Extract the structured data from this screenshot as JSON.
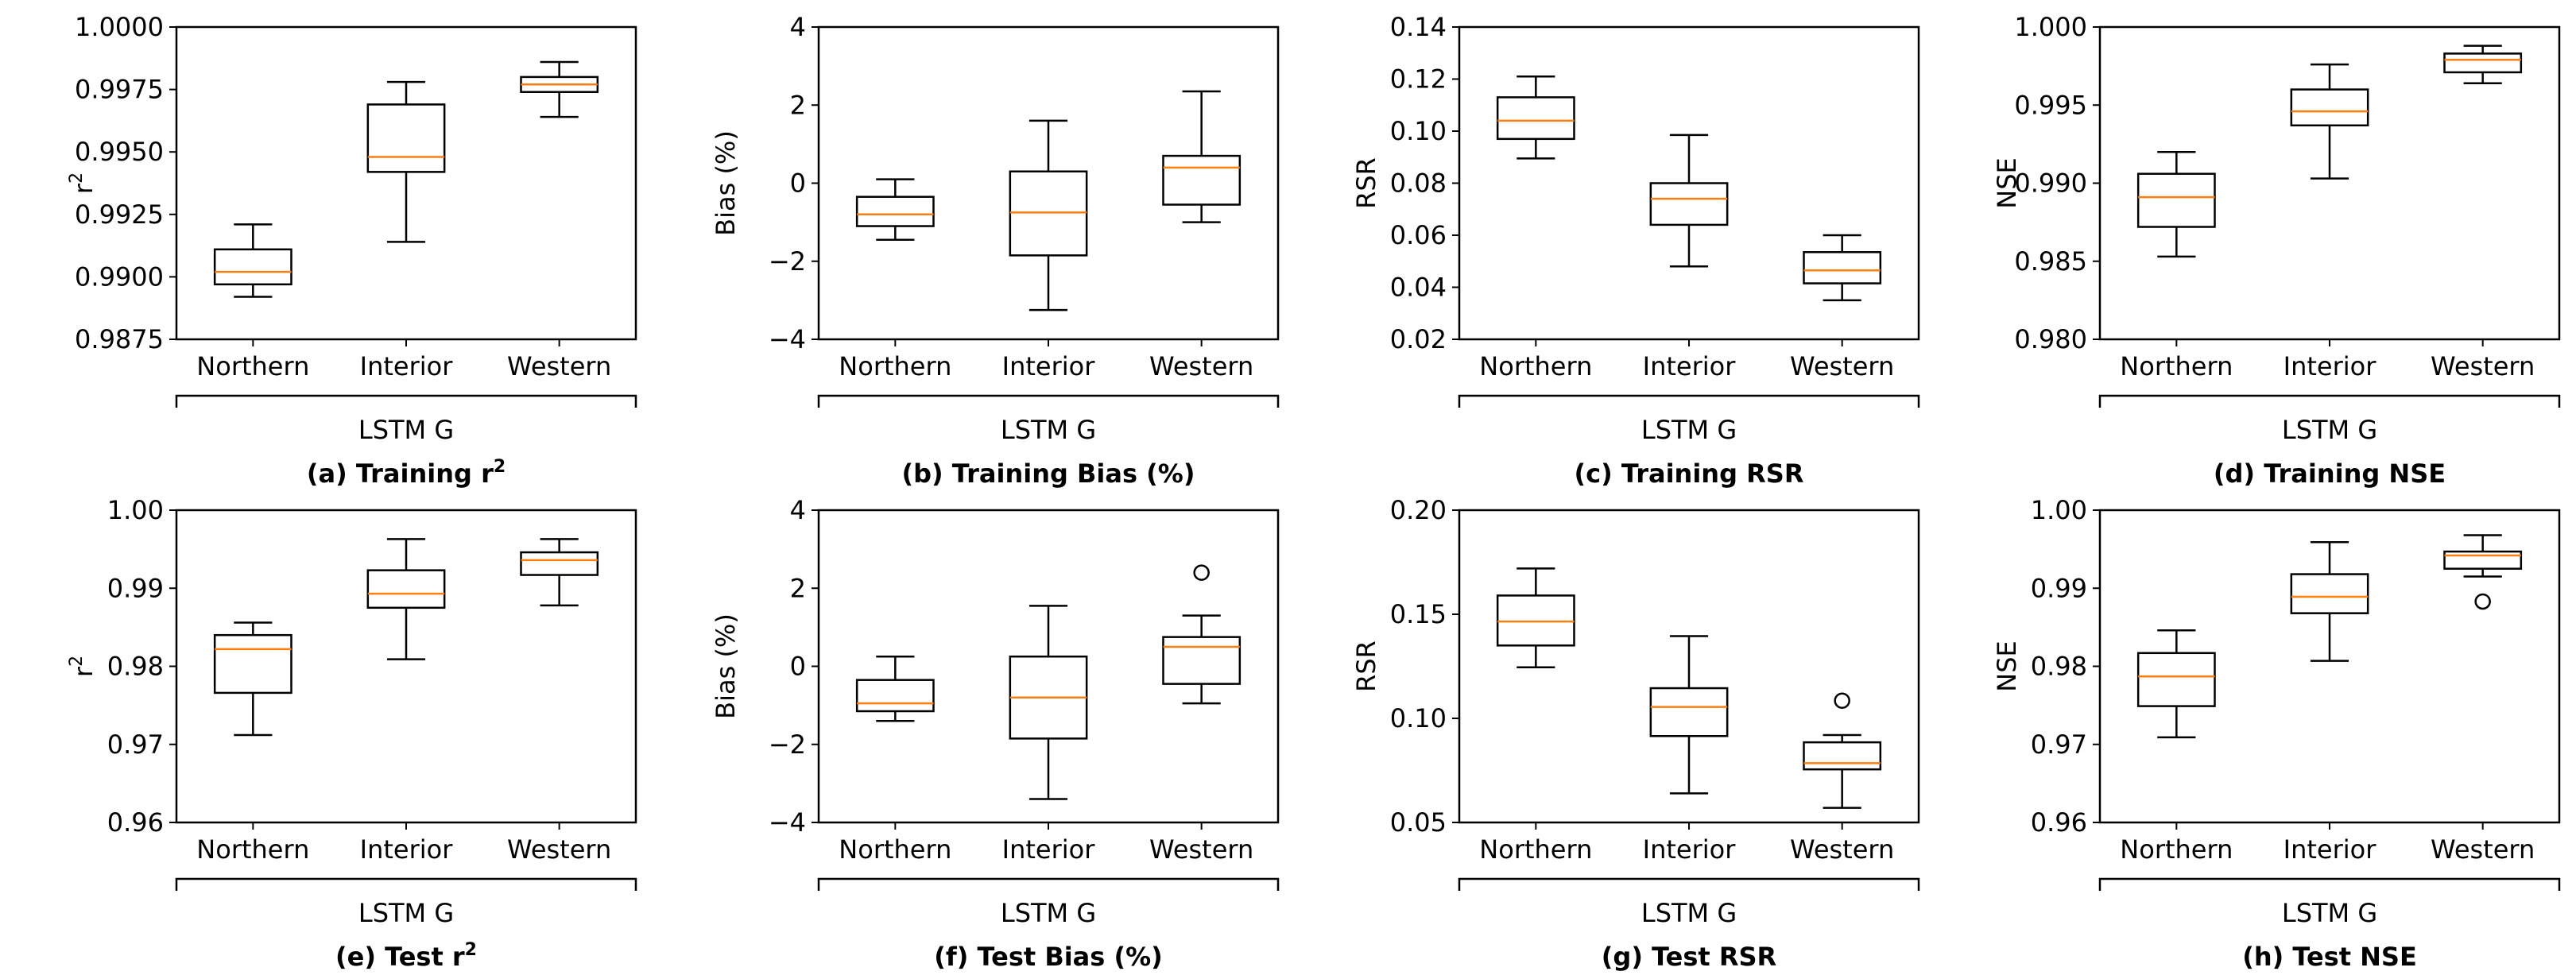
{
  "chart_data": [
    {
      "type": "boxplot",
      "panel": "a",
      "caption": "(a) Training r",
      "caption_sup": "2",
      "ylabel": "r",
      "ylabel_sup": "2",
      "ylim": [
        0.9875,
        1.0
      ],
      "yticks": [
        0.9875,
        0.99,
        0.9925,
        0.995,
        0.9975,
        1.0
      ],
      "ytick_labels": [
        "0.9875",
        "0.9900",
        "0.9925",
        "0.9950",
        "0.9975",
        "1.0000"
      ],
      "categories": [
        "Northern",
        "Interior",
        "Western"
      ],
      "group_label": "LSTM G",
      "boxes": [
        {
          "whislo": 0.9892,
          "q1": 0.9897,
          "med": 0.9902,
          "q3": 0.9911,
          "whishi": 0.9921,
          "fliers": []
        },
        {
          "whislo": 0.9914,
          "q1": 0.9942,
          "med": 0.9948,
          "q3": 0.9969,
          "whishi": 0.9978,
          "fliers": []
        },
        {
          "whislo": 0.9964,
          "q1": 0.9974,
          "med": 0.9977,
          "q3": 0.998,
          "whishi": 0.9986,
          "fliers": []
        }
      ]
    },
    {
      "type": "boxplot",
      "panel": "b",
      "caption": "(b) Training Bias (%)",
      "caption_sup": "",
      "ylabel": "Bias (%)",
      "ylabel_sup": "",
      "ylim": [
        -4,
        4
      ],
      "yticks": [
        -4,
        -2,
        0,
        2,
        4
      ],
      "ytick_labels": [
        "−4",
        "−2",
        "0",
        "2",
        "4"
      ],
      "categories": [
        "Northern",
        "Interior",
        "Western"
      ],
      "group_label": "LSTM G",
      "boxes": [
        {
          "whislo": -1.45,
          "q1": -1.1,
          "med": -0.8,
          "q3": -0.35,
          "whishi": 0.1,
          "fliers": []
        },
        {
          "whislo": -3.25,
          "q1": -1.85,
          "med": -0.75,
          "q3": 0.3,
          "whishi": 1.6,
          "fliers": []
        },
        {
          "whislo": -1.0,
          "q1": -0.55,
          "med": 0.4,
          "q3": 0.7,
          "whishi": 2.35,
          "fliers": []
        }
      ]
    },
    {
      "type": "boxplot",
      "panel": "c",
      "caption": "(c) Training RSR",
      "caption_sup": "",
      "ylabel": "RSR",
      "ylabel_sup": "",
      "ylim": [
        0.02,
        0.14
      ],
      "yticks": [
        0.02,
        0.04,
        0.06,
        0.08,
        0.1,
        0.12,
        0.14
      ],
      "ytick_labels": [
        "0.02",
        "0.04",
        "0.06",
        "0.08",
        "0.10",
        "0.12",
        "0.14"
      ],
      "categories": [
        "Northern",
        "Interior",
        "Western"
      ],
      "group_label": "LSTM G",
      "boxes": [
        {
          "whislo": 0.0895,
          "q1": 0.097,
          "med": 0.104,
          "q3": 0.113,
          "whishi": 0.121,
          "fliers": []
        },
        {
          "whislo": 0.048,
          "q1": 0.064,
          "med": 0.074,
          "q3": 0.08,
          "whishi": 0.0985,
          "fliers": []
        },
        {
          "whislo": 0.035,
          "q1": 0.0415,
          "med": 0.0465,
          "q3": 0.0535,
          "whishi": 0.06,
          "fliers": []
        }
      ]
    },
    {
      "type": "boxplot",
      "panel": "d",
      "caption": "(d) Training NSE",
      "caption_sup": "",
      "ylabel": "NSE",
      "ylabel_sup": "",
      "ylim": [
        0.98,
        1.0
      ],
      "yticks": [
        0.98,
        0.985,
        0.99,
        0.995,
        1.0
      ],
      "ytick_labels": [
        "0.980",
        "0.985",
        "0.990",
        "0.995",
        "1.000"
      ],
      "categories": [
        "Northern",
        "Interior",
        "Western"
      ],
      "group_label": "LSTM G",
      "boxes": [
        {
          "whislo": 0.9853,
          "q1": 0.9872,
          "med": 0.9891,
          "q3": 0.9906,
          "whishi": 0.992,
          "fliers": []
        },
        {
          "whislo": 0.9903,
          "q1": 0.9937,
          "med": 0.9946,
          "q3": 0.996,
          "whishi": 0.9976,
          "fliers": []
        },
        {
          "whislo": 0.9964,
          "q1": 0.9971,
          "med": 0.9979,
          "q3": 0.9983,
          "whishi": 0.9988,
          "fliers": []
        }
      ]
    },
    {
      "type": "boxplot",
      "panel": "e",
      "caption": "(e) Test r",
      "caption_sup": "2",
      "ylabel": "r",
      "ylabel_sup": "2",
      "ylim": [
        0.96,
        1.0
      ],
      "yticks": [
        0.96,
        0.97,
        0.98,
        0.99,
        1.0
      ],
      "ytick_labels": [
        "0.96",
        "0.97",
        "0.98",
        "0.99",
        "1.00"
      ],
      "categories": [
        "Northern",
        "Interior",
        "Western"
      ],
      "group_label": "LSTM G",
      "boxes": [
        {
          "whislo": 0.9712,
          "q1": 0.9766,
          "med": 0.9822,
          "q3": 0.984,
          "whishi": 0.9856,
          "fliers": []
        },
        {
          "whislo": 0.9809,
          "q1": 0.9875,
          "med": 0.9893,
          "q3": 0.9923,
          "whishi": 0.9963,
          "fliers": []
        },
        {
          "whislo": 0.9878,
          "q1": 0.9917,
          "med": 0.9936,
          "q3": 0.9946,
          "whishi": 0.9963,
          "fliers": []
        }
      ]
    },
    {
      "type": "boxplot",
      "panel": "f",
      "caption": "(f) Test Bias (%)",
      "caption_sup": "",
      "ylabel": "Bias (%)",
      "ylabel_sup": "",
      "ylim": [
        -4,
        4
      ],
      "yticks": [
        -4,
        -2,
        0,
        2,
        4
      ],
      "ytick_labels": [
        "−4",
        "−2",
        "0",
        "2",
        "4"
      ],
      "categories": [
        "Northern",
        "Interior",
        "Western"
      ],
      "group_label": "LSTM G",
      "boxes": [
        {
          "whislo": -1.4,
          "q1": -1.15,
          "med": -0.95,
          "q3": -0.35,
          "whishi": 0.25,
          "fliers": []
        },
        {
          "whislo": -3.4,
          "q1": -1.85,
          "med": -0.8,
          "q3": 0.25,
          "whishi": 1.55,
          "fliers": []
        },
        {
          "whislo": -0.95,
          "q1": -0.45,
          "med": 0.5,
          "q3": 0.75,
          "whishi": 1.3,
          "fliers": [
            2.4
          ]
        }
      ]
    },
    {
      "type": "boxplot",
      "panel": "g",
      "caption": "(g) Test RSR",
      "caption_sup": "",
      "ylabel": "RSR",
      "ylabel_sup": "",
      "ylim": [
        0.05,
        0.2
      ],
      "yticks": [
        0.05,
        0.1,
        0.15,
        0.2
      ],
      "ytick_labels": [
        "0.05",
        "0.10",
        "0.15",
        "0.20"
      ],
      "categories": [
        "Northern",
        "Interior",
        "Western"
      ],
      "group_label": "LSTM G",
      "boxes": [
        {
          "whislo": 0.1245,
          "q1": 0.135,
          "med": 0.1465,
          "q3": 0.159,
          "whishi": 0.172,
          "fliers": []
        },
        {
          "whislo": 0.064,
          "q1": 0.0915,
          "med": 0.1055,
          "q3": 0.1145,
          "whishi": 0.1395,
          "fliers": []
        },
        {
          "whislo": 0.057,
          "q1": 0.0755,
          "med": 0.0785,
          "q3": 0.0885,
          "whishi": 0.092,
          "fliers": [
            0.1085
          ]
        }
      ]
    },
    {
      "type": "boxplot",
      "panel": "h",
      "caption": "(h) Test NSE",
      "caption_sup": "",
      "ylabel": "NSE",
      "ylabel_sup": "",
      "ylim": [
        0.96,
        1.0
      ],
      "yticks": [
        0.96,
        0.97,
        0.98,
        0.99,
        1.0
      ],
      "ytick_labels": [
        "0.96",
        "0.97",
        "0.98",
        "0.99",
        "1.00"
      ],
      "categories": [
        "Northern",
        "Interior",
        "Western"
      ],
      "group_label": "LSTM G",
      "boxes": [
        {
          "whislo": 0.9709,
          "q1": 0.9749,
          "med": 0.9787,
          "q3": 0.9817,
          "whishi": 0.9846,
          "fliers": []
        },
        {
          "whislo": 0.9807,
          "q1": 0.9868,
          "med": 0.9889,
          "q3": 0.9918,
          "whishi": 0.9959,
          "fliers": []
        },
        {
          "whislo": 0.9915,
          "q1": 0.9925,
          "med": 0.9942,
          "q3": 0.9947,
          "whishi": 0.9968,
          "fliers": [
            0.9883
          ]
        }
      ]
    }
  ],
  "colors": {
    "median": "#ff7f0e",
    "box": "#000000",
    "background": "#ffffff"
  }
}
